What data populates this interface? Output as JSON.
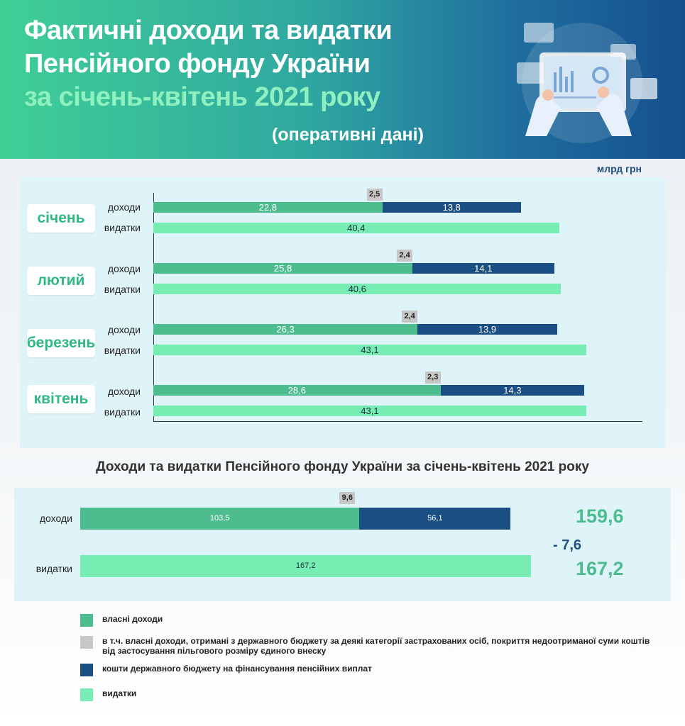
{
  "header": {
    "title_line1": "Фактичні доходи та видатки",
    "title_line2": "Пенсійного фонду України",
    "title_line3": "за січень-квітень 2021 року",
    "note": "(оперативні дані)"
  },
  "unit": "млрд грн",
  "series_labels": {
    "income": "доходи",
    "expense": "видатки"
  },
  "colors": {
    "own_income": "#4dbc8f",
    "state_budget_part": "#c7c7c7",
    "state_budget": "#194f83",
    "expenses": "#77edb3"
  },
  "chart_data": [
    {
      "type": "bar",
      "orientation": "horizontal",
      "stacked": true,
      "categories": [
        "січень",
        "лютий",
        "березень",
        "квітень"
      ],
      "series": [
        {
          "name": "власні доходи",
          "stack": "доходи",
          "values": [
            22.8,
            25.8,
            26.3,
            28.6
          ],
          "labels": [
            "22,8",
            "25,8",
            "26,3",
            "28,6"
          ]
        },
        {
          "name": "в т.ч. власні доходи, отримані з державного бюджету",
          "stack": "доходи",
          "part_of": "власні доходи",
          "values": [
            2.5,
            2.4,
            2.4,
            2.3
          ],
          "labels": [
            "2,5",
            "2,4",
            "2,4",
            "2,3"
          ]
        },
        {
          "name": "кошти державного бюджету на фінансування пенсійних виплат",
          "stack": "доходи",
          "values": [
            13.8,
            14.1,
            13.9,
            14.3
          ],
          "labels": [
            "13,8",
            "14,1",
            "13,9",
            "14,3"
          ]
        },
        {
          "name": "видатки",
          "stack": "видатки",
          "values": [
            40.4,
            40.6,
            43.1,
            43.1
          ],
          "labels": [
            "40,4",
            "40,6",
            "43,1",
            "43,1"
          ]
        }
      ],
      "xlim": [
        0,
        45
      ],
      "grid": false
    },
    {
      "type": "bar",
      "orientation": "horizontal",
      "stacked": true,
      "title": "Доходи та видатки Пенсійного фонду України за січень-квітень 2021 року",
      "categories": [
        "доходи",
        "видатки"
      ],
      "series": [
        {
          "name": "власні доходи",
          "values": [
            103.5,
            null
          ],
          "labels": [
            "103,5",
            ""
          ]
        },
        {
          "name": "в т.ч. власні доходи, отримані з державного бюджету",
          "part_of": "власні доходи",
          "values": [
            9.6,
            null
          ],
          "labels": [
            "9,6",
            ""
          ]
        },
        {
          "name": "кошти державного бюджету на фінансування пенсійних виплат",
          "values": [
            56.1,
            null
          ],
          "labels": [
            "56,1",
            ""
          ]
        },
        {
          "name": "видатки",
          "values": [
            null,
            167.2
          ],
          "labels": [
            "",
            "167,2"
          ]
        }
      ],
      "totals": {
        "income": "159,6",
        "expenses": "167,2",
        "difference": "- 7,6"
      },
      "xlim": [
        0,
        170
      ],
      "grid": false
    }
  ],
  "legend": [
    {
      "color": "#4dbc8f",
      "text": "власні доходи"
    },
    {
      "color": "#c7c7c7",
      "text": "в т.ч. власні доходи, отримані з державного бюджету за деякі категорії застрахованих осіб, покриття недоотриманої суми коштів від застосування пільгового розміру єдиного внеску"
    },
    {
      "color": "#194f83",
      "text": "кошти державного бюджету на фінансування пенсійних виплат"
    },
    {
      "color": "#77edb3",
      "text": "видатки"
    }
  ]
}
